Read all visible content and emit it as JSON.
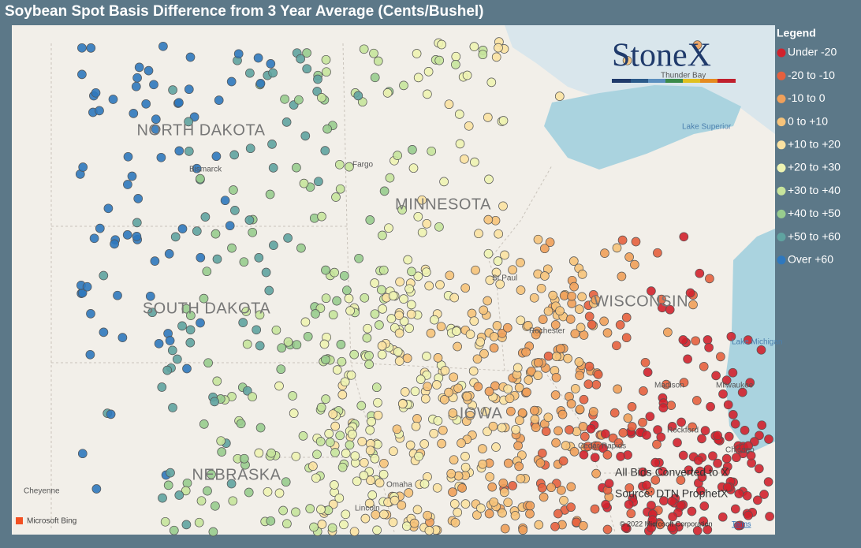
{
  "header": {
    "title": "Soybean Spot Basis Difference from 3 Year Average (Cents/Bushel)"
  },
  "legend": {
    "title": "Legend",
    "items": [
      {
        "label": "Under -20",
        "color": "#d2222d"
      },
      {
        "label": "-20 to -10",
        "color": "#e5603e"
      },
      {
        "label": "-10 to 0",
        "color": "#f0a05a"
      },
      {
        "label": "0 to +10",
        "color": "#f6c37a"
      },
      {
        "label": "+10 to +20",
        "color": "#fbe2a2"
      },
      {
        "label": "+20 to +30",
        "color": "#eef3b2"
      },
      {
        "label": "+30 to +40",
        "color": "#c7e49c"
      },
      {
        "label": "+40 to +50",
        "color": "#98cc8e"
      },
      {
        "label": "+50 to +60",
        "color": "#5fa3a0"
      },
      {
        "label": "Over +60",
        "color": "#2f78bd"
      }
    ]
  },
  "map": {
    "states": [
      "NORTH DAKOTA",
      "SOUTH DAKOTA",
      "NEBRASKA",
      "MINNESOTA",
      "WISCONSIN",
      "IOWA"
    ],
    "cities": [
      "Bismarck",
      "Fargo",
      "St Paul",
      "Rochester",
      "Madison",
      "Milwaukee",
      "Rockford",
      "Chicago",
      "Cedar Rapids",
      "Omaha",
      "Lincoln",
      "Cheyenne",
      "Thunder Bay"
    ],
    "water": [
      "Lake Superior",
      "Lake Michigan"
    ],
    "logo": "StoneX",
    "notes": [
      "All Bids Converted to X",
      "Source: DTN ProphetX"
    ],
    "attribution": [
      "Microsoft Bing",
      "© 2022 Microsoft Corporation",
      "Terms"
    ]
  }
}
